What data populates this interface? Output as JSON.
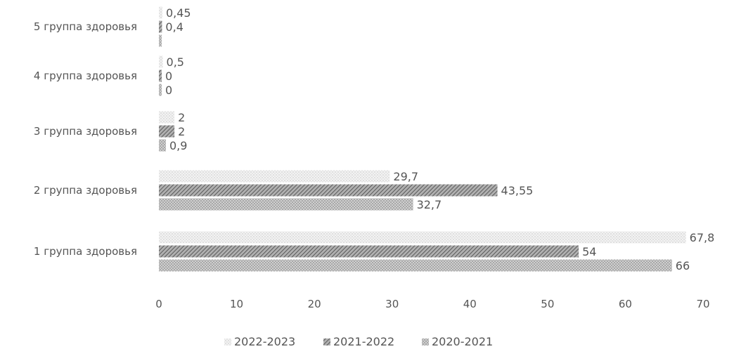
{
  "chart_data": {
    "type": "bar",
    "orientation": "horizontal",
    "categories": [
      "1 группа здоровья",
      "2 группа здоровья",
      "3 группа здоровья",
      "4 группа здоровья",
      "5 группа здоровья"
    ],
    "series": [
      {
        "name": "2022-2023",
        "values": [
          67.8,
          29.7,
          2,
          0.5,
          0.45
        ],
        "labels": [
          "67,8",
          "29,7",
          "2",
          "0,5",
          "0,45"
        ],
        "color": "#e8e8e8",
        "pattern": "dots"
      },
      {
        "name": "2021-2022",
        "values": [
          54,
          43.55,
          2,
          0,
          0.4
        ],
        "labels": [
          "54",
          "43,55",
          "2",
          "0",
          "0,4"
        ],
        "color": "#8a8a8a",
        "pattern": "diagonal"
      },
      {
        "name": "2020-2021",
        "values": [
          66,
          32.7,
          0.9,
          0,
          0
        ],
        "labels": [
          "66",
          "32,7",
          "0,9",
          "0",
          ""
        ],
        "color": "#c4c4c4",
        "pattern": "crosshatch"
      }
    ],
    "xlim": [
      0,
      70
    ],
    "xticks": [
      "0",
      "10",
      "20",
      "30",
      "40",
      "50",
      "60",
      "70"
    ],
    "legend_position": "bottom",
    "grid": false,
    "title": "",
    "xlabel": "",
    "ylabel": ""
  }
}
